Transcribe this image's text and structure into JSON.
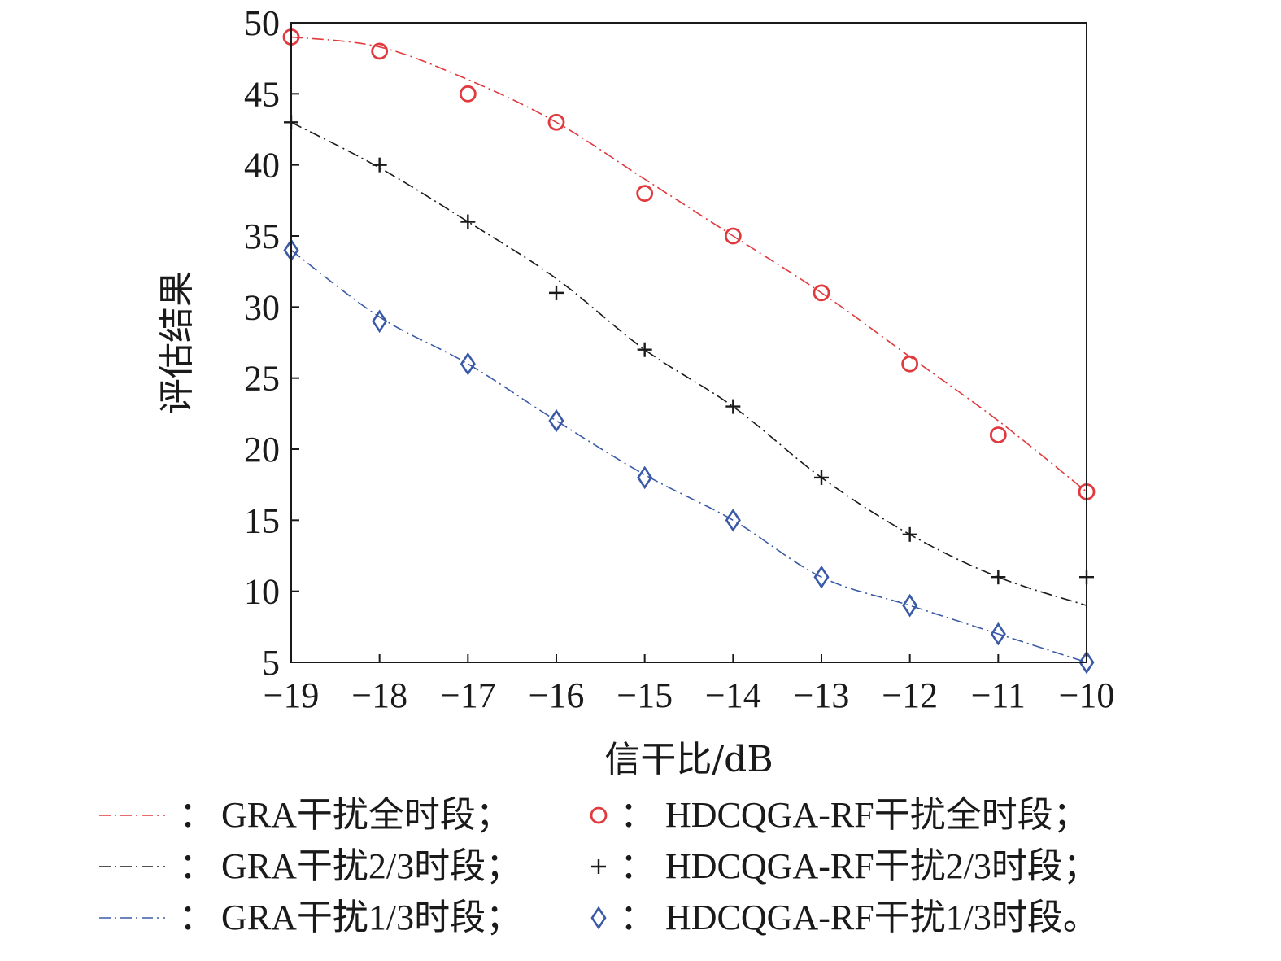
{
  "chart_data": {
    "type": "line",
    "xlabel": "信干比/dB",
    "ylabel": "评估结果",
    "xlim": [
      -19,
      -10
    ],
    "ylim": [
      5,
      50
    ],
    "x": [
      -19,
      -18,
      -17,
      -16,
      -15,
      -14,
      -13,
      -12,
      -11,
      -10
    ],
    "x_tick_labels": [
      "−19",
      "−18",
      "−17",
      "−16",
      "−15",
      "−14",
      "−13",
      "−12",
      "−11",
      "−10"
    ],
    "y_ticks": [
      5,
      10,
      15,
      20,
      25,
      30,
      35,
      40,
      45,
      50
    ],
    "y_tick_labels": [
      "5",
      "10",
      "15",
      "20",
      "25",
      "30",
      "35",
      "40",
      "45",
      "50"
    ],
    "grid": false,
    "legend_position": "bottom",
    "series": [
      {
        "name": "GRA干扰全时段",
        "style": "dash-dot-line",
        "color": "#e03a3e",
        "values": [
          49,
          48.3,
          46,
          43,
          39,
          35,
          31,
          26.5,
          22,
          17
        ]
      },
      {
        "name": "HDCQGA-RF干扰全时段",
        "style": "circle-marker",
        "color": "#e03a3e",
        "values": [
          49,
          48,
          45,
          43,
          38,
          35,
          31,
          26,
          21,
          17
        ]
      },
      {
        "name": "GRA干扰2/3时段",
        "style": "dash-dot-line",
        "color": "#1a1a1a",
        "values": [
          43,
          39.8,
          36,
          32,
          27,
          23,
          18,
          14,
          11,
          9
        ]
      },
      {
        "name": "HDCQGA-RF干扰2/3时段",
        "style": "plus-marker",
        "color": "#1a1a1a",
        "values": [
          43,
          40,
          36,
          31,
          27,
          23,
          18,
          14,
          11,
          11
        ]
      },
      {
        "name": "GRA干扰1/3时段",
        "style": "dash-dot-line",
        "color": "#3a5aa8",
        "values": [
          34,
          29.3,
          26,
          22,
          18.2,
          15,
          11,
          9,
          7,
          5
        ]
      },
      {
        "name": "HDCQGA-RF干扰1/3时段",
        "style": "diamond-marker",
        "color": "#3a5aa8",
        "values": [
          34,
          29,
          26,
          22,
          18,
          15,
          11,
          9,
          7,
          5
        ]
      }
    ],
    "legend": {
      "separator": "：",
      "rows": [
        {
          "left": "GRA干扰全时段；",
          "right": "HDCQGA-RF干扰全时段；"
        },
        {
          "left": "GRA干扰2/3时段；",
          "right": "HDCQGA-RF干扰2/3时段；"
        },
        {
          "left": "GRA干扰1/3时段；",
          "right": "HDCQGA-RF干扰1/3时段。"
        }
      ]
    }
  }
}
